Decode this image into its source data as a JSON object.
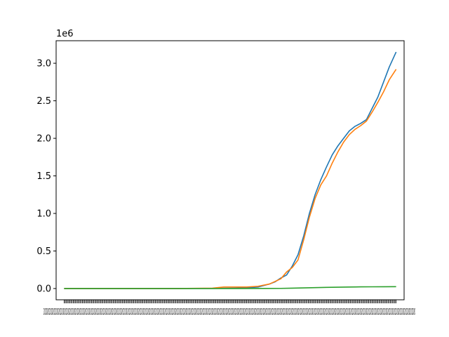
{
  "chart_data": {
    "type": "line",
    "title": "",
    "xlabel": "",
    "ylabel": "",
    "y_offset_label": "1e6",
    "x_tick_labels_overlapping": "2020202020202020202020202020202020202020202020202020202020202020202020202020202020202020202020202020202020202020202020202020202020202020202020202020202020202020202020202020202020202020202020202020202020202020202020202020202020202020202020202020202020202020202020202020202020202020202020202020202020202020202020202020202020202020202020202020202020202020202020202020202020202020202020202020202020202020",
    "xlim": [
      -7,
      298
    ],
    "ylim": [
      -0.15,
      3.3
    ],
    "yticks": [
      0.0,
      0.5,
      1.0,
      1.5,
      2.0,
      2.5,
      3.0
    ],
    "ytick_labels": [
      "0.0",
      "0.5",
      "1.0",
      "1.5",
      "2.0",
      "2.5",
      "3.0"
    ],
    "grid": false,
    "legend": "none",
    "series": [
      {
        "color": "#1f77b4",
        "x": [
          0,
          50,
          100,
          130,
          150,
          160,
          170,
          180,
          185,
          190,
          195,
          200,
          205,
          210,
          215,
          220,
          225,
          230,
          235,
          240,
          245,
          250,
          255,
          260,
          265,
          270,
          275,
          280,
          285,
          291
        ],
        "y": [
          0,
          0,
          0,
          0.001,
          0.005,
          0.01,
          0.02,
          0.06,
          0.09,
          0.14,
          0.18,
          0.3,
          0.45,
          0.7,
          1.0,
          1.25,
          1.45,
          1.62,
          1.78,
          1.9,
          2.0,
          2.1,
          2.16,
          2.2,
          2.25,
          2.4,
          2.55,
          2.75,
          2.95,
          3.15
        ]
      },
      {
        "color": "#ff7f0e",
        "x": [
          0,
          100,
          130,
          140,
          150,
          160,
          170,
          180,
          190,
          195,
          200,
          205,
          210,
          215,
          220,
          225,
          230,
          235,
          240,
          245,
          250,
          255,
          260,
          265,
          270,
          275,
          280,
          285,
          291
        ],
        "y": [
          0,
          0,
          0.005,
          0.02,
          0.02,
          0.02,
          0.03,
          0.06,
          0.13,
          0.22,
          0.28,
          0.38,
          0.65,
          0.95,
          1.2,
          1.38,
          1.5,
          1.67,
          1.82,
          1.95,
          2.05,
          2.12,
          2.17,
          2.23,
          2.35,
          2.48,
          2.62,
          2.78,
          2.92
        ]
      },
      {
        "color": "#2ca02c",
        "x": [
          0,
          100,
          150,
          190,
          200,
          210,
          220,
          230,
          240,
          250,
          260,
          270,
          280,
          291
        ],
        "y": [
          0,
          0,
          0,
          0.002,
          0.005,
          0.008,
          0.012,
          0.015,
          0.018,
          0.02,
          0.022,
          0.023,
          0.024,
          0.025
        ]
      }
    ]
  }
}
